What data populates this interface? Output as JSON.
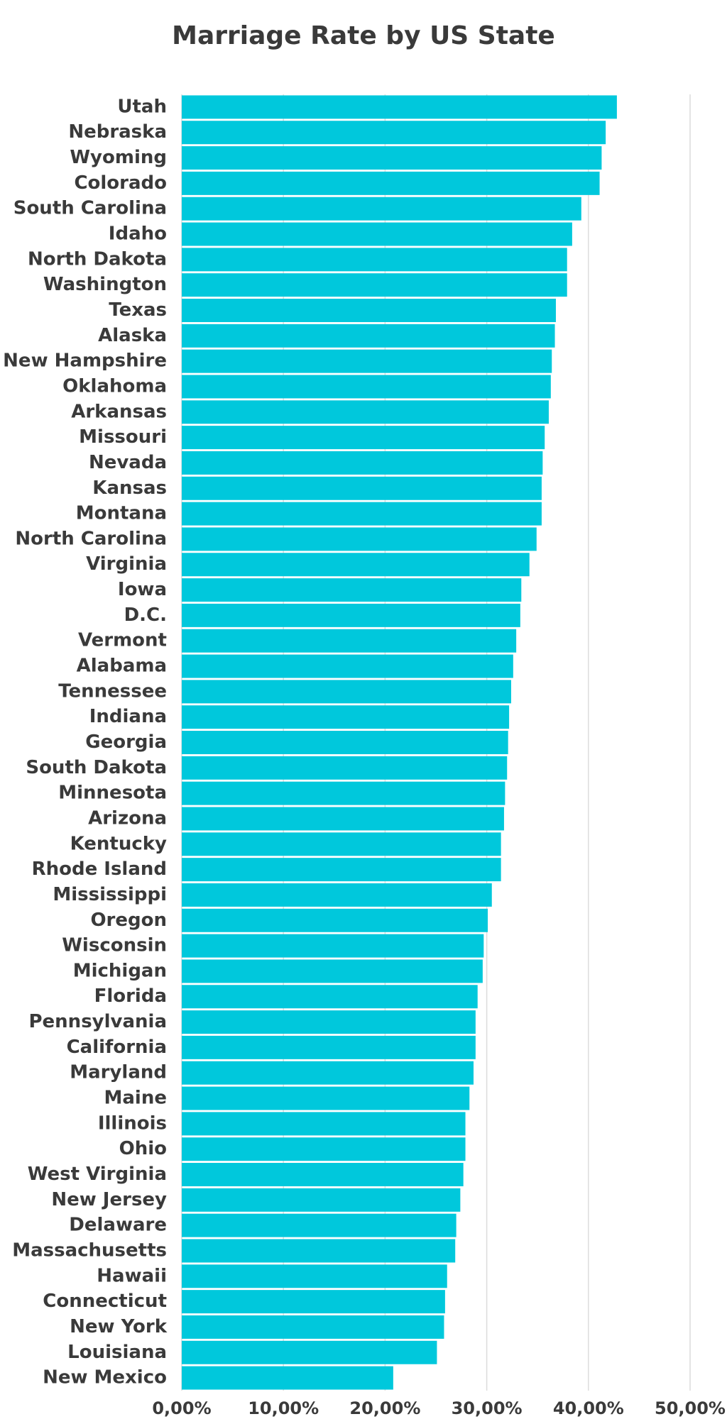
{
  "chart_data": {
    "type": "hbar",
    "title": "Marriage Rate by US State",
    "categories": [
      "Utah",
      "Nebraska",
      "Wyoming",
      "Colorado",
      "South Carolina",
      "Idaho",
      "North Dakota",
      "Washington",
      "Texas",
      "Alaska",
      "New Hampshire",
      "Oklahoma",
      "Arkansas",
      "Missouri",
      "Nevada",
      "Kansas",
      "Montana",
      "North Carolina",
      "Virginia",
      "Iowa",
      "D.C.",
      "Vermont",
      "Alabama",
      "Tennessee",
      "Indiana",
      "Georgia",
      "South Dakota",
      "Minnesota",
      "Arizona",
      "Kentucky",
      "Rhode Island",
      "Mississippi",
      "Oregon",
      "Wisconsin",
      "Michigan",
      "Florida",
      "Pennsylvania",
      "California",
      "Maryland",
      "Maine",
      "Illinois",
      "Ohio",
      "West Virginia",
      "New Jersey",
      "Delaware",
      "Massachusetts",
      "Hawaii",
      "Connecticut",
      "New York",
      "Louisiana",
      "New Mexico"
    ],
    "values": [
      42.8,
      41.7,
      41.3,
      41.1,
      39.3,
      38.4,
      37.9,
      37.9,
      36.8,
      36.7,
      36.4,
      36.3,
      36.1,
      35.7,
      35.5,
      35.4,
      35.4,
      34.9,
      34.2,
      33.4,
      33.3,
      32.9,
      32.6,
      32.4,
      32.2,
      32.1,
      32.0,
      31.8,
      31.7,
      31.4,
      31.4,
      30.5,
      30.1,
      29.7,
      29.6,
      29.1,
      28.9,
      28.9,
      28.7,
      28.3,
      27.9,
      27.9,
      27.7,
      27.4,
      27.0,
      26.9,
      26.1,
      25.9,
      25.8,
      25.1,
      20.8
    ],
    "color": "#00c8dc",
    "xlim": [
      0,
      50
    ],
    "xticks": [
      {
        "value": 0,
        "label": "0,00%"
      },
      {
        "value": 10,
        "label": "10,00%"
      },
      {
        "value": 20,
        "label": "20,00%"
      },
      {
        "value": 30,
        "label": "30,00%"
      },
      {
        "value": 40,
        "label": "40,00%"
      },
      {
        "value": 50,
        "label": "50,00%"
      }
    ],
    "grid": true
  }
}
